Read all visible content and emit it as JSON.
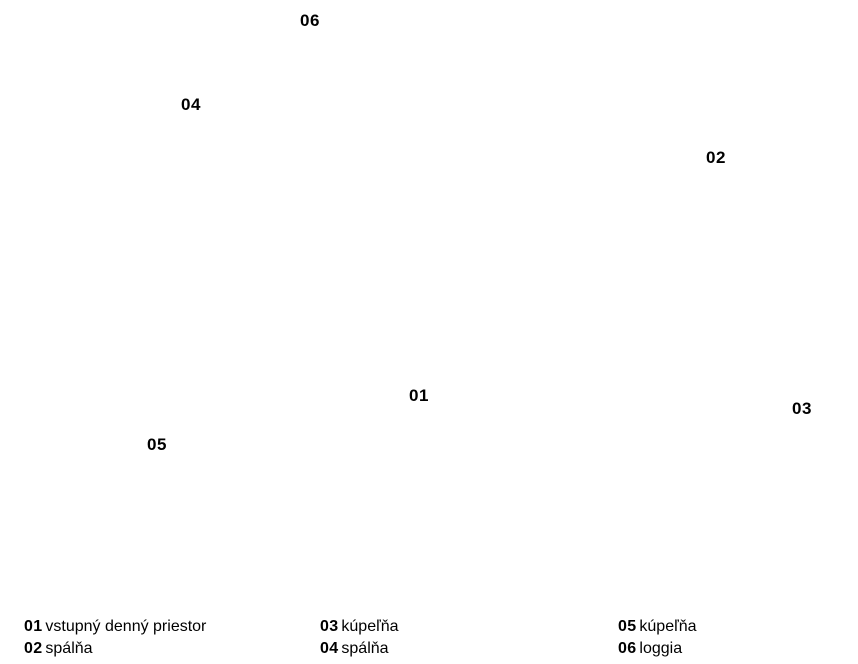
{
  "plan": {
    "labels": [
      "06",
      "04",
      "02",
      "01",
      "03",
      "05"
    ]
  },
  "legend": {
    "items": [
      {
        "num": "01",
        "name": "vstupný denný priestor"
      },
      {
        "num": "02",
        "name": "spálňa"
      },
      {
        "num": "03",
        "name": "kúpeľňa"
      },
      {
        "num": "04",
        "name": "spálňa"
      },
      {
        "num": "05",
        "name": "kúpeľňa"
      },
      {
        "num": "06",
        "name": "loggia"
      }
    ]
  }
}
